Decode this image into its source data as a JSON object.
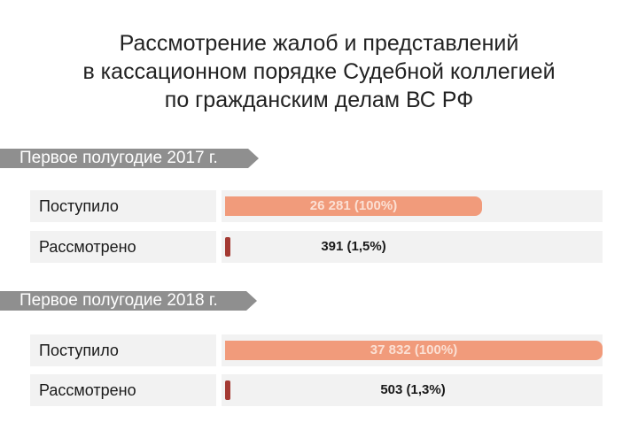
{
  "title_lines": [
    "Рассмотрение жалоб и представлений",
    "в кассационном порядке Судебной коллегией",
    "по гражданским делам ВС РФ"
  ],
  "chart_data": {
    "type": "bar",
    "orientation": "horizontal",
    "title": "Рассмотрение жалоб и представлений в кассационном порядке Судебной коллегией по гражданским делам ВС РФ",
    "groups": [
      {
        "name": "Первое полугодие 2017 г.",
        "categories": [
          "Поступило",
          "Рассмотрено"
        ],
        "values": [
          26281,
          391
        ],
        "labels": [
          "26 281 (100%)",
          "391 (1,5%)"
        ]
      },
      {
        "name": "Первое полугодие 2018 г.",
        "categories": [
          "Поступило",
          "Рассмотрено"
        ],
        "values": [
          37832,
          503
        ],
        "labels": [
          "37 832 (100%)",
          "503 (1,3%)"
        ]
      }
    ],
    "colors": {
      "received": "#f19b7b",
      "reviewed": "#a43a33",
      "section_tab": "#8f8f8f",
      "row_background": "#f2f2f2"
    },
    "xlim": [
      0,
      37832
    ]
  }
}
